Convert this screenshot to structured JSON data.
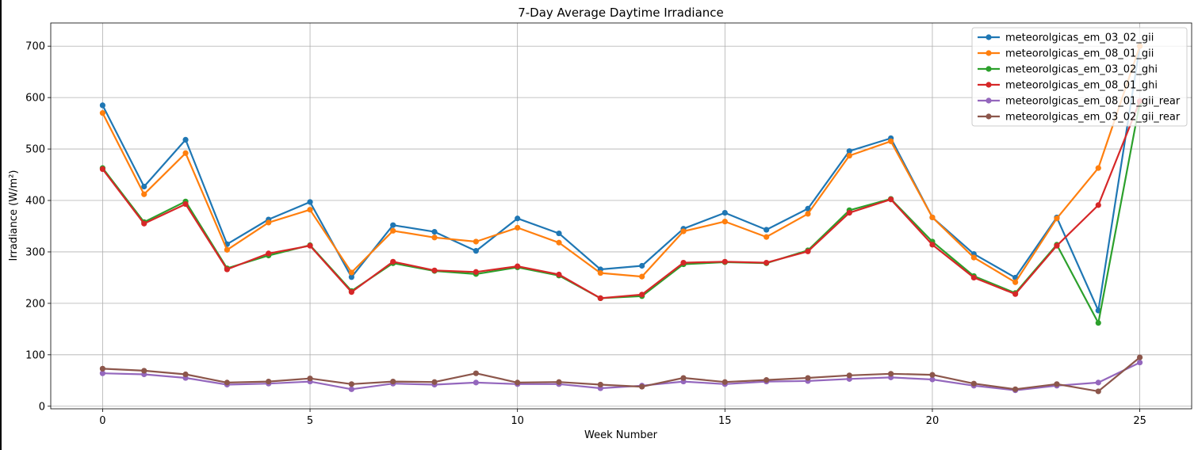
{
  "chart_data": {
    "type": "line",
    "title": "7-Day Average Daytime Irradiance",
    "xlabel": "Week Number",
    "ylabel": "Irradiance (W/m²)",
    "xlim": [
      -1.25,
      26.25
    ],
    "ylim": [
      -5,
      745
    ],
    "xticks": [
      0,
      5,
      10,
      15,
      20,
      25
    ],
    "yticks": [
      0,
      100,
      200,
      300,
      400,
      500,
      600,
      700
    ],
    "grid": true,
    "legend_position": "top-right",
    "x": [
      0,
      1,
      2,
      3,
      4,
      5,
      6,
      7,
      8,
      9,
      10,
      11,
      12,
      13,
      14,
      15,
      16,
      17,
      18,
      19,
      20,
      21,
      22,
      23,
      24,
      25
    ],
    "series": [
      {
        "name": "meteorolgicas_em_03_02_gii",
        "color": "#1f77b4",
        "values": [
          585,
          427,
          518,
          315,
          363,
          397,
          251,
          352,
          339,
          302,
          365,
          336,
          266,
          273,
          345,
          376,
          343,
          384,
          496,
          521,
          367,
          296,
          250,
          367,
          186,
          700
        ]
      },
      {
        "name": "meteorolgicas_em_08_01_gii",
        "color": "#ff7f0e",
        "values": [
          570,
          412,
          492,
          304,
          357,
          382,
          260,
          341,
          328,
          320,
          347,
          318,
          259,
          252,
          340,
          359,
          329,
          374,
          487,
          515,
          367,
          289,
          241,
          365,
          463,
          700
        ]
      },
      {
        "name": "meteorolgicas_em_03_02_ghi",
        "color": "#2ca02c",
        "values": [
          463,
          358,
          398,
          268,
          293,
          313,
          224,
          278,
          263,
          257,
          270,
          254,
          210,
          214,
          276,
          280,
          278,
          303,
          381,
          403,
          320,
          253,
          220,
          314,
          162,
          590
        ]
      },
      {
        "name": "meteorolgicas_em_08_01_ghi",
        "color": "#d62728",
        "values": [
          461,
          355,
          393,
          266,
          297,
          312,
          222,
          281,
          264,
          261,
          272,
          256,
          210,
          217,
          279,
          281,
          279,
          301,
          376,
          402,
          314,
          250,
          218,
          312,
          391,
          593
        ]
      },
      {
        "name": "meteorolgicas_em_08_01_gii_rear",
        "color": "#9467bd",
        "values": [
          64,
          62,
          55,
          42,
          44,
          48,
          33,
          44,
          42,
          46,
          43,
          43,
          35,
          40,
          48,
          43,
          48,
          49,
          53,
          56,
          52,
          40,
          31,
          40,
          46,
          85
        ]
      },
      {
        "name": "meteorolgicas_em_03_02_gii_rear",
        "color": "#8c564b",
        "values": [
          73,
          69,
          62,
          46,
          48,
          54,
          43,
          48,
          47,
          64,
          46,
          47,
          42,
          38,
          55,
          47,
          51,
          55,
          60,
          63,
          61,
          44,
          33,
          43,
          29,
          95
        ]
      }
    ]
  }
}
